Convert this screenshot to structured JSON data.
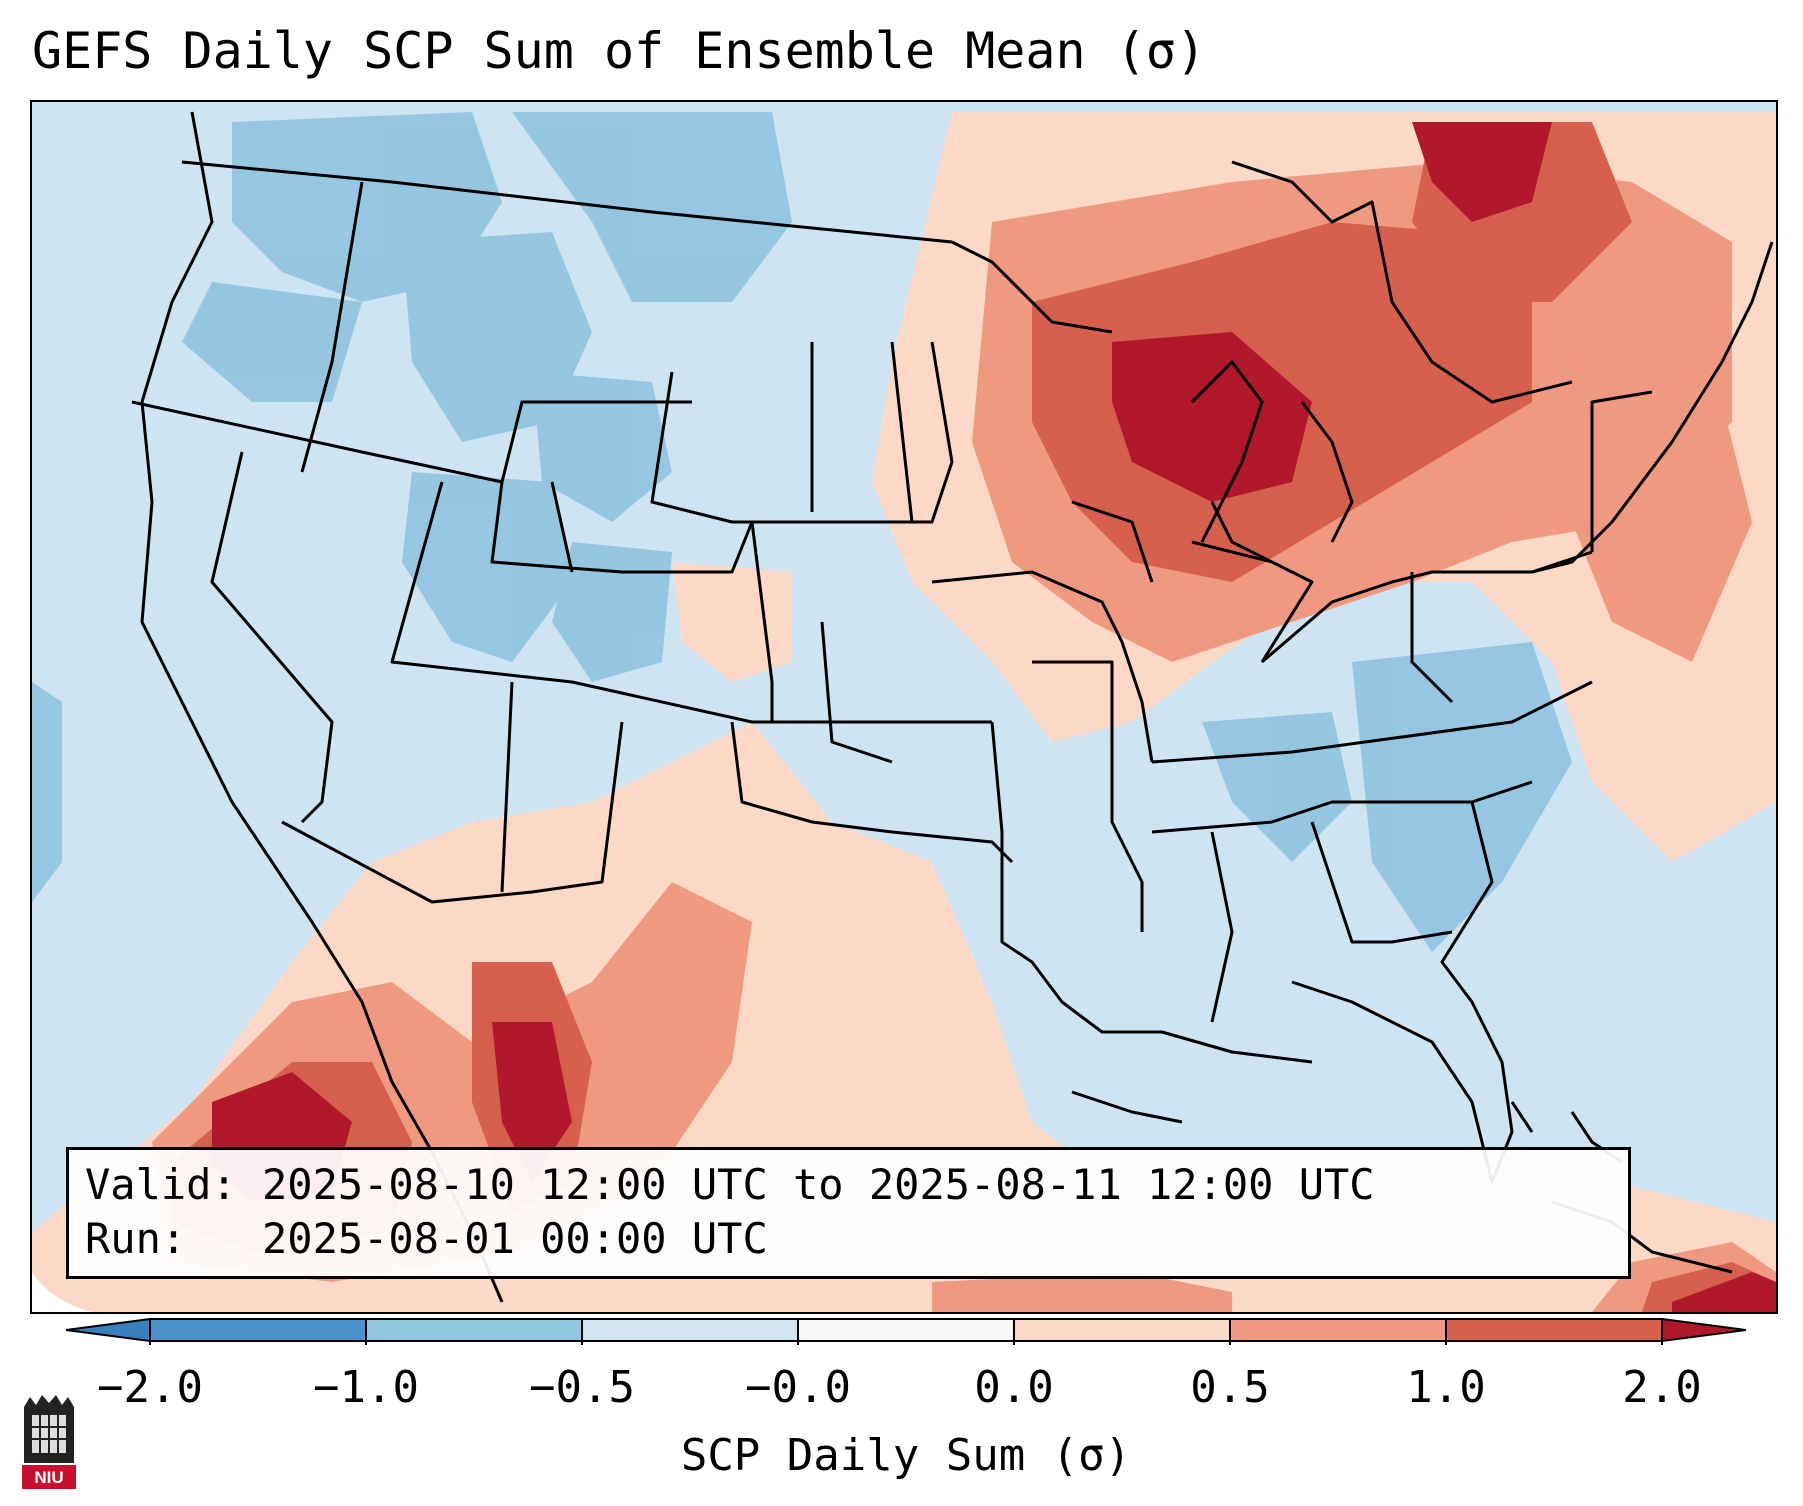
{
  "title": "GEFS Daily SCP Sum of Ensemble Mean (σ)",
  "info": {
    "valid_line": "Valid: 2025-08-10 12:00 UTC to 2025-08-11 12:00 UTC",
    "run_line": "Run:   2025-08-01 00:00 UTC"
  },
  "colorbar": {
    "label": "SCP Daily Sum (σ)",
    "ticks": [
      "−2.0",
      "−1.0",
      "−0.5",
      "−0.0",
      "0.0",
      "0.5",
      "1.0",
      "2.0"
    ],
    "colors": {
      "under": "#3a7fbd",
      "bins": [
        "#4a90c9",
        "#92c5e0",
        "#d1e5f0",
        "#f7f7f7",
        "#fbd9c6",
        "#ef9a80",
        "#d6604d",
        "#b2182b"
      ],
      "over": "#b2182b"
    }
  },
  "map": {
    "region": "CONUS",
    "field_colors": {
      "ocean": "#cfe4f2",
      "light_blue": "#d1e5f0",
      "mid_blue": "#92c5e0",
      "light_red": "#fbd9c6",
      "mid_red": "#ef9a80",
      "red": "#d6604d",
      "dark_red": "#b2182b"
    }
  },
  "logo": {
    "text": "NIU"
  }
}
